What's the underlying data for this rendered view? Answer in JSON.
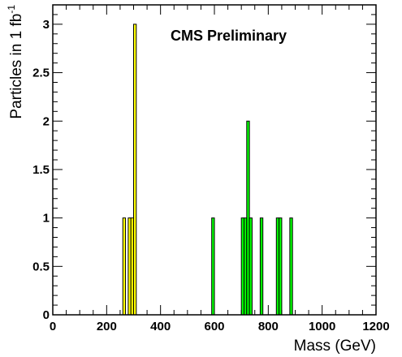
{
  "chart_data": {
    "type": "bar",
    "subtype": "histogram",
    "annotation": "CMS Preliminary",
    "xlabel": "Mass (GeV)",
    "ylabel": {
      "main": "Particles in 1 fb",
      "superscript": "-1"
    },
    "xlim": [
      0,
      1200
    ],
    "ylim": [
      0,
      3.2
    ],
    "bin_width": 10,
    "x_ticks": {
      "values": [
        0,
        200,
        400,
        600,
        800,
        1000,
        1200
      ],
      "labels": [
        "0",
        "200",
        "400",
        "600",
        "800",
        "1000",
        "1200"
      ]
    },
    "y_ticks": {
      "values": [
        0,
        0.5,
        1,
        1.5,
        2,
        2.5,
        3
      ],
      "labels": [
        "0",
        "0.5",
        "1",
        "1.5",
        "2",
        "2.5",
        "3"
      ]
    },
    "grid": false,
    "legend": "none",
    "series": [
      {
        "color": "#ffff00",
        "bins": [
          {
            "x": 265,
            "value": 1
          },
          {
            "x": 285,
            "value": 1
          },
          {
            "x": 295,
            "value": 1
          },
          {
            "x": 305,
            "value": 3
          }
        ]
      },
      {
        "color": "#00ff00",
        "bins": [
          {
            "x": 595,
            "value": 1
          },
          {
            "x": 705,
            "value": 1
          },
          {
            "x": 715,
            "value": 1
          },
          {
            "x": 725,
            "value": 2
          },
          {
            "x": 735,
            "value": 1
          },
          {
            "x": 775,
            "value": 1
          },
          {
            "x": 835,
            "value": 1
          },
          {
            "x": 845,
            "value": 1
          },
          {
            "x": 885,
            "value": 1
          }
        ]
      }
    ]
  }
}
